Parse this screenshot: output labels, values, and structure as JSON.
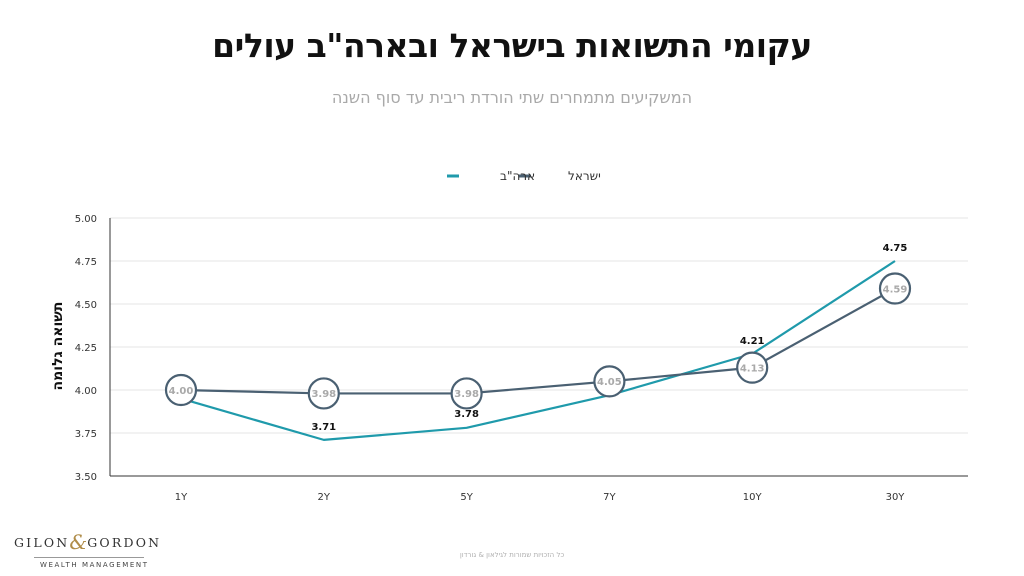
{
  "title": "עקומי התשואות בישראל ובארה\"ב עולים",
  "subtitle": "המשקיעים מתמחרים שתי הורדת ריבית עד סוף השנה",
  "footer": "כל הזכויות שמורות לגילאון & גורדון",
  "logo": {
    "word1": "GILON",
    "amp": "&",
    "word2": "GORDON",
    "tagline": "WEALTH MANAGEMENT"
  },
  "colors": {
    "israel": "#4a6072",
    "usa": "#1f9aab",
    "grid": "#e6e6e6",
    "axis": "#333333",
    "marker_fill": "#ffffff",
    "marker_label": "#a9a9a9"
  },
  "chart_data": {
    "type": "line",
    "categories": [
      "1Y",
      "2Y",
      "5Y",
      "7Y",
      "10Y",
      "30Y"
    ],
    "ylabel": "תשואה גלומה",
    "xlabel": "",
    "ylim": [
      3.5,
      5.0
    ],
    "yticks": [
      "5.00",
      "4.75",
      "4.50",
      "4.25",
      "4.00",
      "3.75",
      "3.50"
    ],
    "grid": true,
    "legend_position": "top-center",
    "series": [
      {
        "name": "ישראל",
        "key": "israel",
        "values": [
          4.0,
          3.98,
          3.98,
          4.05,
          4.13,
          4.59
        ],
        "labels": [
          "4.00",
          "3.98",
          "3.98",
          "4.05",
          "4.13",
          "4.59"
        ]
      },
      {
        "name": "ארה\"ב",
        "key": "usa",
        "values": [
          3.95,
          3.71,
          3.78,
          3.97,
          4.21,
          4.75
        ],
        "labels": [
          "",
          "3.71",
          "3.78",
          "",
          "4.21",
          "4.75"
        ]
      }
    ]
  }
}
